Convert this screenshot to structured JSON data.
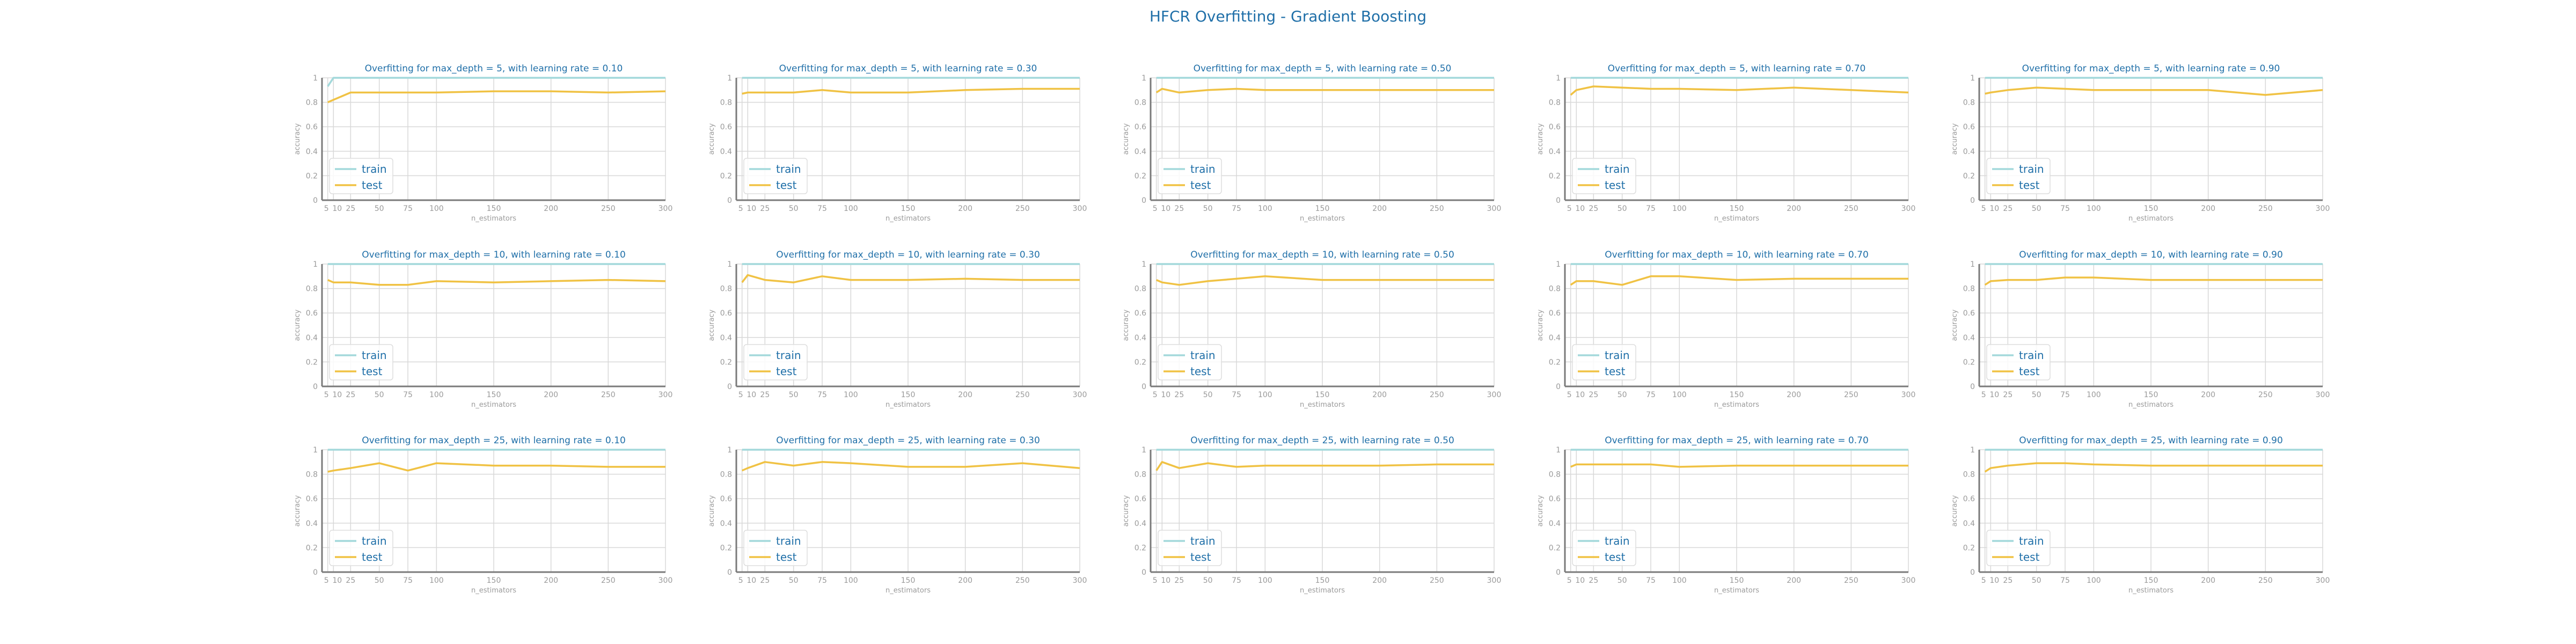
{
  "figure": {
    "title": "HFCR Overfitting - Gradient Boosting",
    "colors": {
      "train": "#a3d9db",
      "test": "#f0c244",
      "title": "#1f6fa8",
      "axis_text": "#9a9a9a",
      "grid": "#d8d8d8",
      "spine": "#7a7a7a"
    }
  },
  "chart_data": [
    {
      "type": "line",
      "title": "Overfitting for max_depth = 5, with learning rate = 0.10",
      "xlabel": "n_estimators",
      "ylabel": "accuracy",
      "x": [
        5,
        10,
        25,
        50,
        75,
        100,
        150,
        200,
        250,
        300
      ],
      "xticks": [
        5,
        10,
        25,
        50,
        75,
        100,
        150,
        200,
        250,
        300
      ],
      "ylim": [
        0,
        1
      ],
      "yticks": [
        0.0,
        0.2,
        0.4,
        0.6,
        0.8,
        1.0
      ],
      "grid": true,
      "legend": "lower-left",
      "series": [
        {
          "name": "train",
          "values": [
            0.93,
            1.0,
            1.0,
            1.0,
            1.0,
            1.0,
            1.0,
            1.0,
            1.0,
            1.0
          ]
        },
        {
          "name": "test",
          "values": [
            0.8,
            0.82,
            0.88,
            0.88,
            0.88,
            0.88,
            0.89,
            0.89,
            0.88,
            0.89
          ]
        }
      ]
    },
    {
      "type": "line",
      "title": "Overfitting for max_depth = 5, with learning rate = 0.30",
      "xlabel": "n_estimators",
      "ylabel": "accuracy",
      "x": [
        5,
        10,
        25,
        50,
        75,
        100,
        150,
        200,
        250,
        300
      ],
      "xticks": [
        5,
        10,
        25,
        50,
        75,
        100,
        150,
        200,
        250,
        300
      ],
      "ylim": [
        0,
        1
      ],
      "yticks": [
        0.0,
        0.2,
        0.4,
        0.6,
        0.8,
        1.0
      ],
      "grid": true,
      "legend": "lower-left",
      "series": [
        {
          "name": "train",
          "values": [
            1.0,
            1.0,
            1.0,
            1.0,
            1.0,
            1.0,
            1.0,
            1.0,
            1.0,
            1.0
          ]
        },
        {
          "name": "test",
          "values": [
            0.87,
            0.88,
            0.88,
            0.88,
            0.9,
            0.88,
            0.88,
            0.9,
            0.91,
            0.91
          ]
        }
      ]
    },
    {
      "type": "line",
      "title": "Overfitting for max_depth = 5, with learning rate = 0.50",
      "xlabel": "n_estimators",
      "ylabel": "accuracy",
      "x": [
        5,
        10,
        25,
        50,
        75,
        100,
        150,
        200,
        250,
        300
      ],
      "xticks": [
        5,
        10,
        25,
        50,
        75,
        100,
        150,
        200,
        250,
        300
      ],
      "ylim": [
        0,
        1
      ],
      "yticks": [
        0.0,
        0.2,
        0.4,
        0.6,
        0.8,
        1.0
      ],
      "grid": true,
      "legend": "lower-left",
      "series": [
        {
          "name": "train",
          "values": [
            1.0,
            1.0,
            1.0,
            1.0,
            1.0,
            1.0,
            1.0,
            1.0,
            1.0,
            1.0
          ]
        },
        {
          "name": "test",
          "values": [
            0.88,
            0.91,
            0.88,
            0.9,
            0.91,
            0.9,
            0.9,
            0.9,
            0.9,
            0.9
          ]
        }
      ]
    },
    {
      "type": "line",
      "title": "Overfitting for max_depth = 5, with learning rate = 0.70",
      "xlabel": "n_estimators",
      "ylabel": "accuracy",
      "x": [
        5,
        10,
        25,
        50,
        75,
        100,
        150,
        200,
        250,
        300
      ],
      "xticks": [
        5,
        10,
        25,
        50,
        75,
        100,
        150,
        200,
        250,
        300
      ],
      "ylim": [
        0,
        1
      ],
      "yticks": [
        0.0,
        0.2,
        0.4,
        0.6,
        0.8,
        1.0
      ],
      "grid": true,
      "legend": "lower-left",
      "series": [
        {
          "name": "train",
          "values": [
            1.0,
            1.0,
            1.0,
            1.0,
            1.0,
            1.0,
            1.0,
            1.0,
            1.0,
            1.0
          ]
        },
        {
          "name": "test",
          "values": [
            0.86,
            0.9,
            0.93,
            0.92,
            0.91,
            0.91,
            0.9,
            0.92,
            0.9,
            0.88
          ]
        }
      ]
    },
    {
      "type": "line",
      "title": "Overfitting for max_depth = 5, with learning rate = 0.90",
      "xlabel": "n_estimators",
      "ylabel": "accuracy",
      "x": [
        5,
        10,
        25,
        50,
        75,
        100,
        150,
        200,
        250,
        300
      ],
      "xticks": [
        5,
        10,
        25,
        50,
        75,
        100,
        150,
        200,
        250,
        300
      ],
      "ylim": [
        0,
        1
      ],
      "yticks": [
        0.0,
        0.2,
        0.4,
        0.6,
        0.8,
        1.0
      ],
      "grid": true,
      "legend": "lower-left",
      "series": [
        {
          "name": "train",
          "values": [
            1.0,
            1.0,
            1.0,
            1.0,
            1.0,
            1.0,
            1.0,
            1.0,
            1.0,
            1.0
          ]
        },
        {
          "name": "test",
          "values": [
            0.87,
            0.88,
            0.9,
            0.92,
            0.91,
            0.9,
            0.9,
            0.9,
            0.86,
            0.9
          ]
        }
      ]
    },
    {
      "type": "line",
      "title": "Overfitting for max_depth = 10, with learning rate = 0.10",
      "xlabel": "n_estimators",
      "ylabel": "accuracy",
      "x": [
        5,
        10,
        25,
        50,
        75,
        100,
        150,
        200,
        250,
        300
      ],
      "xticks": [
        5,
        10,
        25,
        50,
        75,
        100,
        150,
        200,
        250,
        300
      ],
      "ylim": [
        0,
        1
      ],
      "yticks": [
        0.0,
        0.2,
        0.4,
        0.6,
        0.8,
        1.0
      ],
      "grid": true,
      "legend": "lower-left",
      "series": [
        {
          "name": "train",
          "values": [
            1.0,
            1.0,
            1.0,
            1.0,
            1.0,
            1.0,
            1.0,
            1.0,
            1.0,
            1.0
          ]
        },
        {
          "name": "test",
          "values": [
            0.87,
            0.85,
            0.85,
            0.83,
            0.83,
            0.86,
            0.85,
            0.86,
            0.87,
            0.86
          ]
        }
      ]
    },
    {
      "type": "line",
      "title": "Overfitting for max_depth = 10, with learning rate = 0.30",
      "xlabel": "n_estimators",
      "ylabel": "accuracy",
      "x": [
        5,
        10,
        25,
        50,
        75,
        100,
        150,
        200,
        250,
        300
      ],
      "xticks": [
        5,
        10,
        25,
        50,
        75,
        100,
        150,
        200,
        250,
        300
      ],
      "ylim": [
        0,
        1
      ],
      "yticks": [
        0.0,
        0.2,
        0.4,
        0.6,
        0.8,
        1.0
      ],
      "grid": true,
      "legend": "lower-left",
      "series": [
        {
          "name": "train",
          "values": [
            1.0,
            1.0,
            1.0,
            1.0,
            1.0,
            1.0,
            1.0,
            1.0,
            1.0,
            1.0
          ]
        },
        {
          "name": "test",
          "values": [
            0.85,
            0.91,
            0.87,
            0.85,
            0.9,
            0.87,
            0.87,
            0.88,
            0.87,
            0.87
          ]
        }
      ]
    },
    {
      "type": "line",
      "title": "Overfitting for max_depth = 10, with learning rate = 0.50",
      "xlabel": "n_estimators",
      "ylabel": "accuracy",
      "x": [
        5,
        10,
        25,
        50,
        75,
        100,
        150,
        200,
        250,
        300
      ],
      "xticks": [
        5,
        10,
        25,
        50,
        75,
        100,
        150,
        200,
        250,
        300
      ],
      "ylim": [
        0,
        1
      ],
      "yticks": [
        0.0,
        0.2,
        0.4,
        0.6,
        0.8,
        1.0
      ],
      "grid": true,
      "legend": "lower-left",
      "series": [
        {
          "name": "train",
          "values": [
            1.0,
            1.0,
            1.0,
            1.0,
            1.0,
            1.0,
            1.0,
            1.0,
            1.0,
            1.0
          ]
        },
        {
          "name": "test",
          "values": [
            0.87,
            0.85,
            0.83,
            0.86,
            0.88,
            0.9,
            0.87,
            0.87,
            0.87,
            0.87
          ]
        }
      ]
    },
    {
      "type": "line",
      "title": "Overfitting for max_depth = 10, with learning rate = 0.70",
      "xlabel": "n_estimators",
      "ylabel": "accuracy",
      "x": [
        5,
        10,
        25,
        50,
        75,
        100,
        150,
        200,
        250,
        300
      ],
      "xticks": [
        5,
        10,
        25,
        50,
        75,
        100,
        150,
        200,
        250,
        300
      ],
      "ylim": [
        0,
        1
      ],
      "yticks": [
        0.0,
        0.2,
        0.4,
        0.6,
        0.8,
        1.0
      ],
      "grid": true,
      "legend": "lower-left",
      "series": [
        {
          "name": "train",
          "values": [
            1.0,
            1.0,
            1.0,
            1.0,
            1.0,
            1.0,
            1.0,
            1.0,
            1.0,
            1.0
          ]
        },
        {
          "name": "test",
          "values": [
            0.83,
            0.86,
            0.86,
            0.83,
            0.9,
            0.9,
            0.87,
            0.88,
            0.88,
            0.88
          ]
        }
      ]
    },
    {
      "type": "line",
      "title": "Overfitting for max_depth = 10, with learning rate = 0.90",
      "xlabel": "n_estimators",
      "ylabel": "accuracy",
      "x": [
        5,
        10,
        25,
        50,
        75,
        100,
        150,
        200,
        250,
        300
      ],
      "xticks": [
        5,
        10,
        25,
        50,
        75,
        100,
        150,
        200,
        250,
        300
      ],
      "ylim": [
        0,
        1
      ],
      "yticks": [
        0.0,
        0.2,
        0.4,
        0.6,
        0.8,
        1.0
      ],
      "grid": true,
      "legend": "lower-left",
      "series": [
        {
          "name": "train",
          "values": [
            1.0,
            1.0,
            1.0,
            1.0,
            1.0,
            1.0,
            1.0,
            1.0,
            1.0,
            1.0
          ]
        },
        {
          "name": "test",
          "values": [
            0.83,
            0.86,
            0.87,
            0.87,
            0.89,
            0.89,
            0.87,
            0.87,
            0.87,
            0.87
          ]
        }
      ]
    },
    {
      "type": "line",
      "title": "Overfitting for max_depth = 25, with learning rate = 0.10",
      "xlabel": "n_estimators",
      "ylabel": "accuracy",
      "x": [
        5,
        10,
        25,
        50,
        75,
        100,
        150,
        200,
        250,
        300
      ],
      "xticks": [
        5,
        10,
        25,
        50,
        75,
        100,
        150,
        200,
        250,
        300
      ],
      "ylim": [
        0,
        1
      ],
      "yticks": [
        0.0,
        0.2,
        0.4,
        0.6,
        0.8,
        1.0
      ],
      "grid": true,
      "legend": "lower-left",
      "series": [
        {
          "name": "train",
          "values": [
            1.0,
            1.0,
            1.0,
            1.0,
            1.0,
            1.0,
            1.0,
            1.0,
            1.0,
            1.0
          ]
        },
        {
          "name": "test",
          "values": [
            0.82,
            0.83,
            0.85,
            0.89,
            0.83,
            0.89,
            0.87,
            0.87,
            0.86,
            0.86
          ]
        }
      ]
    },
    {
      "type": "line",
      "title": "Overfitting for max_depth = 25, with learning rate = 0.30",
      "xlabel": "n_estimators",
      "ylabel": "accuracy",
      "x": [
        5,
        10,
        25,
        50,
        75,
        100,
        150,
        200,
        250,
        300
      ],
      "xticks": [
        5,
        10,
        25,
        50,
        75,
        100,
        150,
        200,
        250,
        300
      ],
      "ylim": [
        0,
        1
      ],
      "yticks": [
        0.0,
        0.2,
        0.4,
        0.6,
        0.8,
        1.0
      ],
      "grid": true,
      "legend": "lower-left",
      "series": [
        {
          "name": "train",
          "values": [
            1.0,
            1.0,
            1.0,
            1.0,
            1.0,
            1.0,
            1.0,
            1.0,
            1.0,
            1.0
          ]
        },
        {
          "name": "test",
          "values": [
            0.83,
            0.85,
            0.9,
            0.87,
            0.9,
            0.89,
            0.86,
            0.86,
            0.89,
            0.85
          ]
        }
      ]
    },
    {
      "type": "line",
      "title": "Overfitting for max_depth = 25, with learning rate = 0.50",
      "xlabel": "n_estimators",
      "ylabel": "accuracy",
      "x": [
        5,
        10,
        25,
        50,
        75,
        100,
        150,
        200,
        250,
        300
      ],
      "xticks": [
        5,
        10,
        25,
        50,
        75,
        100,
        150,
        200,
        250,
        300
      ],
      "ylim": [
        0,
        1
      ],
      "yticks": [
        0.0,
        0.2,
        0.4,
        0.6,
        0.8,
        1.0
      ],
      "grid": true,
      "legend": "lower-left",
      "series": [
        {
          "name": "train",
          "values": [
            1.0,
            1.0,
            1.0,
            1.0,
            1.0,
            1.0,
            1.0,
            1.0,
            1.0,
            1.0
          ]
        },
        {
          "name": "test",
          "values": [
            0.83,
            0.9,
            0.85,
            0.89,
            0.86,
            0.87,
            0.87,
            0.87,
            0.88,
            0.88
          ]
        }
      ]
    },
    {
      "type": "line",
      "title": "Overfitting for max_depth = 25, with learning rate = 0.70",
      "xlabel": "n_estimators",
      "ylabel": "accuracy",
      "x": [
        5,
        10,
        25,
        50,
        75,
        100,
        150,
        200,
        250,
        300
      ],
      "xticks": [
        5,
        10,
        25,
        50,
        75,
        100,
        150,
        200,
        250,
        300
      ],
      "ylim": [
        0,
        1
      ],
      "yticks": [
        0.0,
        0.2,
        0.4,
        0.6,
        0.8,
        1.0
      ],
      "grid": true,
      "legend": "lower-left",
      "series": [
        {
          "name": "train",
          "values": [
            1.0,
            1.0,
            1.0,
            1.0,
            1.0,
            1.0,
            1.0,
            1.0,
            1.0,
            1.0
          ]
        },
        {
          "name": "test",
          "values": [
            0.86,
            0.88,
            0.88,
            0.88,
            0.88,
            0.86,
            0.87,
            0.87,
            0.87,
            0.87
          ]
        }
      ]
    },
    {
      "type": "line",
      "title": "Overfitting for max_depth = 25, with learning rate = 0.90",
      "xlabel": "n_estimators",
      "ylabel": "accuracy",
      "x": [
        5,
        10,
        25,
        50,
        75,
        100,
        150,
        200,
        250,
        300
      ],
      "xticks": [
        5,
        10,
        25,
        50,
        75,
        100,
        150,
        200,
        250,
        300
      ],
      "ylim": [
        0,
        1
      ],
      "yticks": [
        0.0,
        0.2,
        0.4,
        0.6,
        0.8,
        1.0
      ],
      "grid": true,
      "legend": "lower-left",
      "series": [
        {
          "name": "train",
          "values": [
            1.0,
            1.0,
            1.0,
            1.0,
            1.0,
            1.0,
            1.0,
            1.0,
            1.0,
            1.0
          ]
        },
        {
          "name": "test",
          "values": [
            0.82,
            0.85,
            0.87,
            0.89,
            0.89,
            0.88,
            0.87,
            0.87,
            0.87,
            0.87
          ]
        }
      ]
    }
  ]
}
